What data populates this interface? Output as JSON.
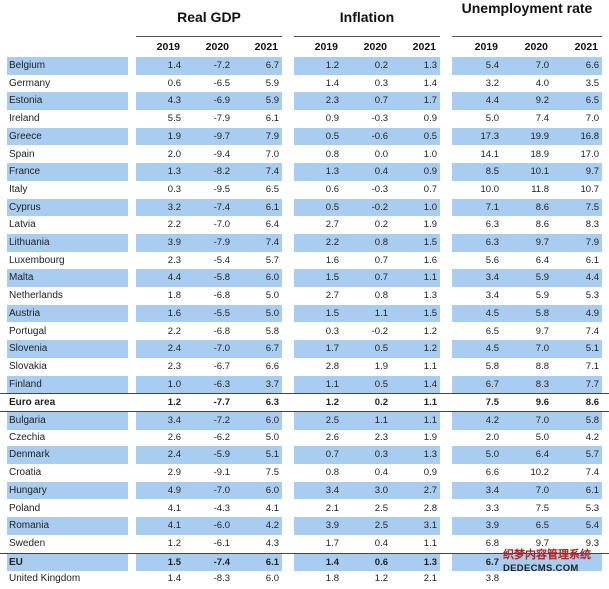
{
  "headers": {
    "groups": [
      "Real GDP",
      "Inflation",
      "Unemployment rate"
    ],
    "years": [
      "2019",
      "2020",
      "2021"
    ]
  },
  "rows": [
    {
      "country": "Belgium",
      "hl": true,
      "gdp": [
        "1.4",
        "-7.2",
        "6.7"
      ],
      "inf": [
        "1.2",
        "0.2",
        "1.3"
      ],
      "unemp": [
        "5.4",
        "7.0",
        "6.6"
      ]
    },
    {
      "country": "Germany",
      "hl": false,
      "gdp": [
        "0.6",
        "-6.5",
        "5.9"
      ],
      "inf": [
        "1.4",
        "0.3",
        "1.4"
      ],
      "unemp": [
        "3.2",
        "4.0",
        "3.5"
      ]
    },
    {
      "country": "Estonia",
      "hl": true,
      "gdp": [
        "4.3",
        "-6.9",
        "5.9"
      ],
      "inf": [
        "2.3",
        "0.7",
        "1.7"
      ],
      "unemp": [
        "4.4",
        "9.2",
        "6.5"
      ]
    },
    {
      "country": "Ireland",
      "hl": false,
      "gdp": [
        "5.5",
        "-7.9",
        "6.1"
      ],
      "inf": [
        "0.9",
        "-0.3",
        "0.9"
      ],
      "unemp": [
        "5.0",
        "7.4",
        "7.0"
      ]
    },
    {
      "country": "Greece",
      "hl": true,
      "gdp": [
        "1.9",
        "-9.7",
        "7.9"
      ],
      "inf": [
        "0.5",
        "-0.6",
        "0.5"
      ],
      "unemp": [
        "17.3",
        "19.9",
        "16.8"
      ]
    },
    {
      "country": "Spain",
      "hl": false,
      "gdp": [
        "2.0",
        "-9.4",
        "7.0"
      ],
      "inf": [
        "0.8",
        "0.0",
        "1.0"
      ],
      "unemp": [
        "14.1",
        "18.9",
        "17.0"
      ]
    },
    {
      "country": "France",
      "hl": true,
      "gdp": [
        "1.3",
        "-8.2",
        "7.4"
      ],
      "inf": [
        "1.3",
        "0.4",
        "0.9"
      ],
      "unemp": [
        "8.5",
        "10.1",
        "9.7"
      ]
    },
    {
      "country": "Italy",
      "hl": false,
      "gdp": [
        "0.3",
        "-9.5",
        "6.5"
      ],
      "inf": [
        "0.6",
        "-0.3",
        "0.7"
      ],
      "unemp": [
        "10.0",
        "11.8",
        "10.7"
      ]
    },
    {
      "country": "Cyprus",
      "hl": true,
      "gdp": [
        "3.2",
        "-7.4",
        "6.1"
      ],
      "inf": [
        "0.5",
        "-0.2",
        "1.0"
      ],
      "unemp": [
        "7.1",
        "8.6",
        "7.5"
      ]
    },
    {
      "country": "Latvia",
      "hl": false,
      "gdp": [
        "2.2",
        "-7.0",
        "6.4"
      ],
      "inf": [
        "2.7",
        "0.2",
        "1.9"
      ],
      "unemp": [
        "6.3",
        "8.6",
        "8.3"
      ]
    },
    {
      "country": "Lithuania",
      "hl": true,
      "gdp": [
        "3.9",
        "-7.9",
        "7.4"
      ],
      "inf": [
        "2.2",
        "0.8",
        "1.5"
      ],
      "unemp": [
        "6.3",
        "9.7",
        "7.9"
      ]
    },
    {
      "country": "Luxembourg",
      "hl": false,
      "gdp": [
        "2.3",
        "-5.4",
        "5.7"
      ],
      "inf": [
        "1.6",
        "0.7",
        "1.6"
      ],
      "unemp": [
        "5.6",
        "6.4",
        "6.1"
      ]
    },
    {
      "country": "Malta",
      "hl": true,
      "gdp": [
        "4.4",
        "-5.8",
        "6.0"
      ],
      "inf": [
        "1.5",
        "0.7",
        "1.1"
      ],
      "unemp": [
        "3.4",
        "5.9",
        "4.4"
      ]
    },
    {
      "country": "Netherlands",
      "hl": false,
      "gdp": [
        "1.8",
        "-6.8",
        "5.0"
      ],
      "inf": [
        "2.7",
        "0.8",
        "1.3"
      ],
      "unemp": [
        "3.4",
        "5.9",
        "5.3"
      ]
    },
    {
      "country": "Austria",
      "hl": true,
      "gdp": [
        "1.6",
        "-5.5",
        "5.0"
      ],
      "inf": [
        "1.5",
        "1.1",
        "1.5"
      ],
      "unemp": [
        "4.5",
        "5.8",
        "4.9"
      ]
    },
    {
      "country": "Portugal",
      "hl": false,
      "gdp": [
        "2.2",
        "-6.8",
        "5.8"
      ],
      "inf": [
        "0.3",
        "-0.2",
        "1.2"
      ],
      "unemp": [
        "6.5",
        "9.7",
        "7.4"
      ]
    },
    {
      "country": "Slovenia",
      "hl": true,
      "gdp": [
        "2.4",
        "-7.0",
        "6.7"
      ],
      "inf": [
        "1.7",
        "0.5",
        "1.2"
      ],
      "unemp": [
        "4.5",
        "7.0",
        "5.1"
      ]
    },
    {
      "country": "Slovakia",
      "hl": false,
      "gdp": [
        "2.3",
        "-6.7",
        "6.6"
      ],
      "inf": [
        "2.8",
        "1.9",
        "1.1"
      ],
      "unemp": [
        "5.8",
        "8.8",
        "7.1"
      ]
    },
    {
      "country": "Finland",
      "hl": true,
      "gdp": [
        "1.0",
        "-6.3",
        "3.7"
      ],
      "inf": [
        "1.1",
        "0.5",
        "1.4"
      ],
      "unemp": [
        "6.7",
        "8.3",
        "7.7"
      ]
    },
    {
      "country": "Euro area",
      "hl": false,
      "bold": true,
      "sep": true,
      "gdp": [
        "1.2",
        "-7.7",
        "6.3"
      ],
      "inf": [
        "1.2",
        "0.2",
        "1.1"
      ],
      "unemp": [
        "7.5",
        "9.6",
        "8.6"
      ]
    },
    {
      "country": "Bulgaria",
      "hl": true,
      "sep": true,
      "gdp": [
        "3.4",
        "-7.2",
        "6.0"
      ],
      "inf": [
        "2.5",
        "1.1",
        "1.1"
      ],
      "unemp": [
        "4.2",
        "7.0",
        "5.8"
      ]
    },
    {
      "country": "Czechia",
      "hl": false,
      "gdp": [
        "2.6",
        "-6.2",
        "5.0"
      ],
      "inf": [
        "2.6",
        "2.3",
        "1.9"
      ],
      "unemp": [
        "2.0",
        "5.0",
        "4.2"
      ]
    },
    {
      "country": "Denmark",
      "hl": true,
      "gdp": [
        "2.4",
        "-5.9",
        "5.1"
      ],
      "inf": [
        "0.7",
        "0.3",
        "1.3"
      ],
      "unemp": [
        "5.0",
        "6.4",
        "5.7"
      ]
    },
    {
      "country": "Croatia",
      "hl": false,
      "gdp": [
        "2.9",
        "-9.1",
        "7.5"
      ],
      "inf": [
        "0.8",
        "0.4",
        "0.9"
      ],
      "unemp": [
        "6.6",
        "10.2",
        "7.4"
      ]
    },
    {
      "country": "Hungary",
      "hl": true,
      "gdp": [
        "4.9",
        "-7.0",
        "6.0"
      ],
      "inf": [
        "3.4",
        "3.0",
        "2.7"
      ],
      "unemp": [
        "3.4",
        "7.0",
        "6.1"
      ]
    },
    {
      "country": "Poland",
      "hl": false,
      "gdp": [
        "4.1",
        "-4.3",
        "4.1"
      ],
      "inf": [
        "2.1",
        "2.5",
        "2.8"
      ],
      "unemp": [
        "3.3",
        "7.5",
        "5.3"
      ]
    },
    {
      "country": "Romania",
      "hl": true,
      "gdp": [
        "4.1",
        "-6.0",
        "4.2"
      ],
      "inf": [
        "3.9",
        "2.5",
        "3.1"
      ],
      "unemp": [
        "3.9",
        "6.5",
        "5.4"
      ]
    },
    {
      "country": "Sweden",
      "hl": false,
      "gdp": [
        "1.2",
        "-6.1",
        "4.3"
      ],
      "inf": [
        "1.7",
        "0.4",
        "1.1"
      ],
      "unemp": [
        "6.8",
        "9.7",
        "9.3"
      ]
    },
    {
      "country": "EU",
      "hl": true,
      "bold": true,
      "sep": true,
      "gdp": [
        "1.5",
        "-7.4",
        "6.1"
      ],
      "inf": [
        "1.4",
        "0.6",
        "1.3"
      ],
      "unemp": [
        "6.7",
        "",
        ""
      ]
    },
    {
      "country": "United Kingdom",
      "hl": false,
      "gdp": [
        "1.4",
        "-8.3",
        "6.0"
      ],
      "inf": [
        "1.8",
        "1.2",
        "2.1"
      ],
      "unemp": [
        "3.8",
        "",
        ""
      ]
    }
  ],
  "watermark": {
    "line1": "织梦内容管理系统",
    "line2": "DEDECMS.COM"
  },
  "colors": {
    "highlight": "#a9cdf0"
  }
}
